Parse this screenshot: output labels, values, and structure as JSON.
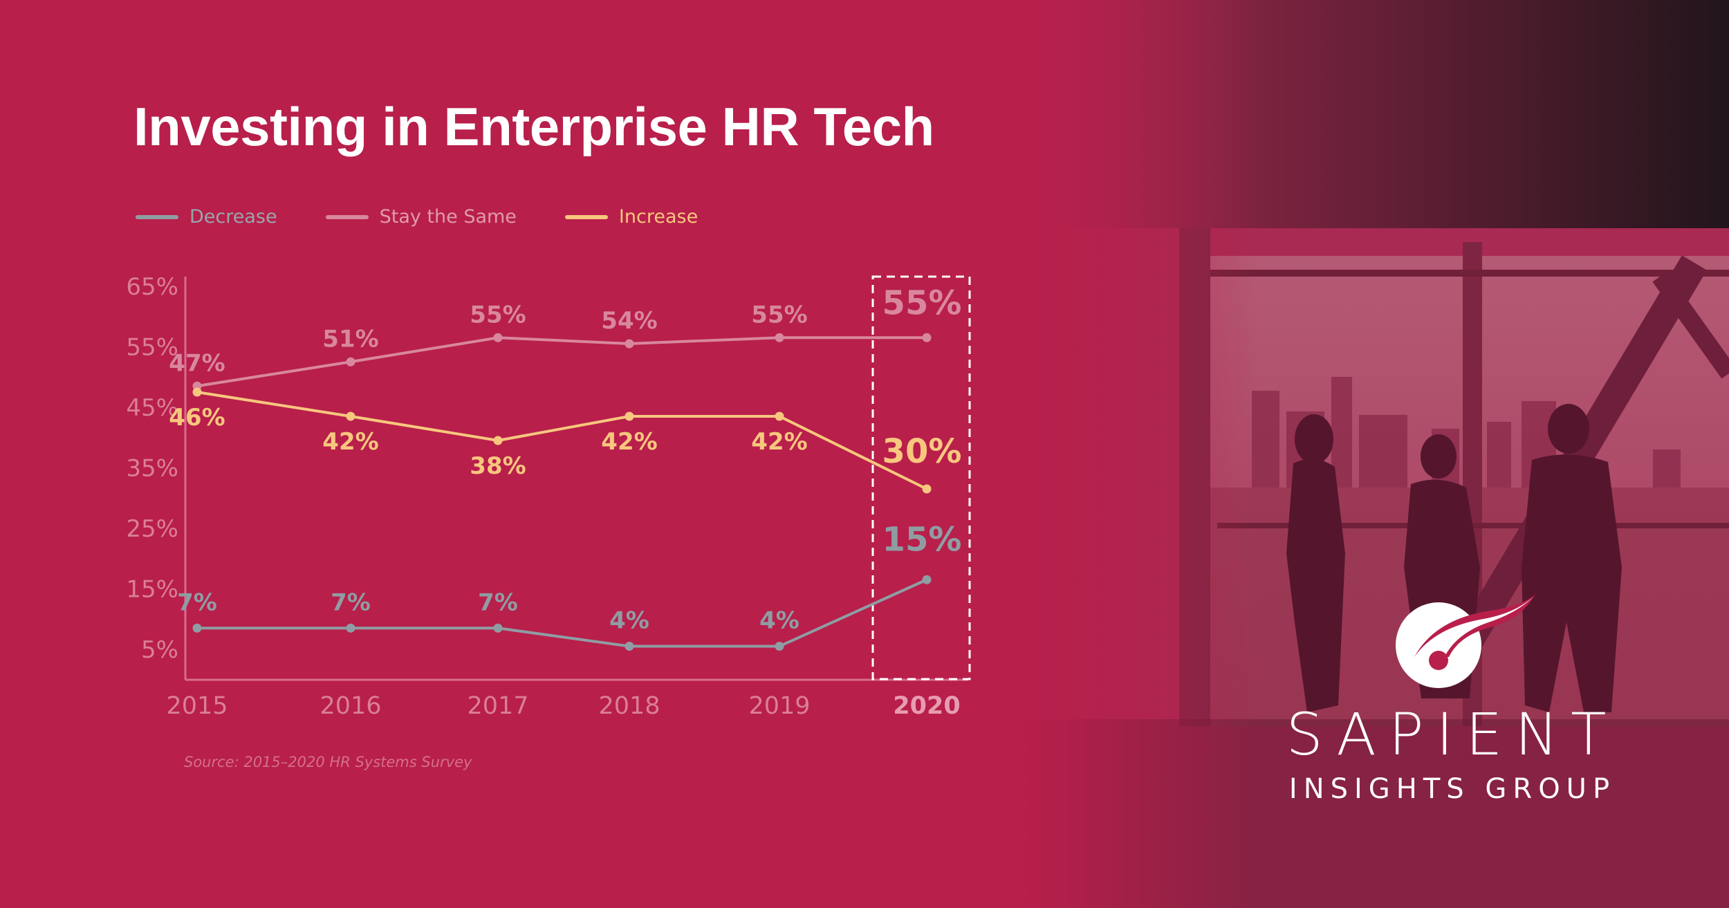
{
  "title": "Investing in Enterprise HR Tech",
  "source": "Source: 2015–2020 HR Systems Survey",
  "brand": {
    "name": "SAPIENT",
    "subtitle": "INSIGHTS GROUP"
  },
  "colors": {
    "background": "#b81f4b",
    "decrease": "#8f9da3",
    "stay": "#d9879e",
    "increase": "#f7c77e",
    "axis_text": "#db7e98"
  },
  "chart_data": {
    "type": "line",
    "title": "Investing in Enterprise HR Tech",
    "x": [
      "2015",
      "2016",
      "2017",
      "2018",
      "2019",
      "2020"
    ],
    "highlight_category": "2020",
    "yticks": [
      "65%",
      "55%",
      "45%",
      "35%",
      "25%",
      "15%",
      "5%"
    ],
    "ylim": [
      0,
      65
    ],
    "legend_position": "top-left",
    "series": [
      {
        "name": "Decrease",
        "key": "decrease",
        "values": [
          7,
          7,
          7,
          4,
          4,
          15
        ],
        "labels": [
          "7%",
          "7%",
          "7%",
          "4%",
          "4%",
          "15%"
        ]
      },
      {
        "name": "Stay the Same",
        "key": "stay",
        "values": [
          47,
          51,
          55,
          54,
          55,
          55
        ],
        "labels": [
          "47%",
          "51%",
          "55%",
          "54%",
          "55%",
          "55%"
        ]
      },
      {
        "name": "Increase",
        "key": "increase",
        "values": [
          46,
          42,
          38,
          42,
          42,
          30
        ],
        "labels": [
          "46%",
          "42%",
          "38%",
          "42%",
          "42%",
          "30%"
        ]
      }
    ]
  }
}
